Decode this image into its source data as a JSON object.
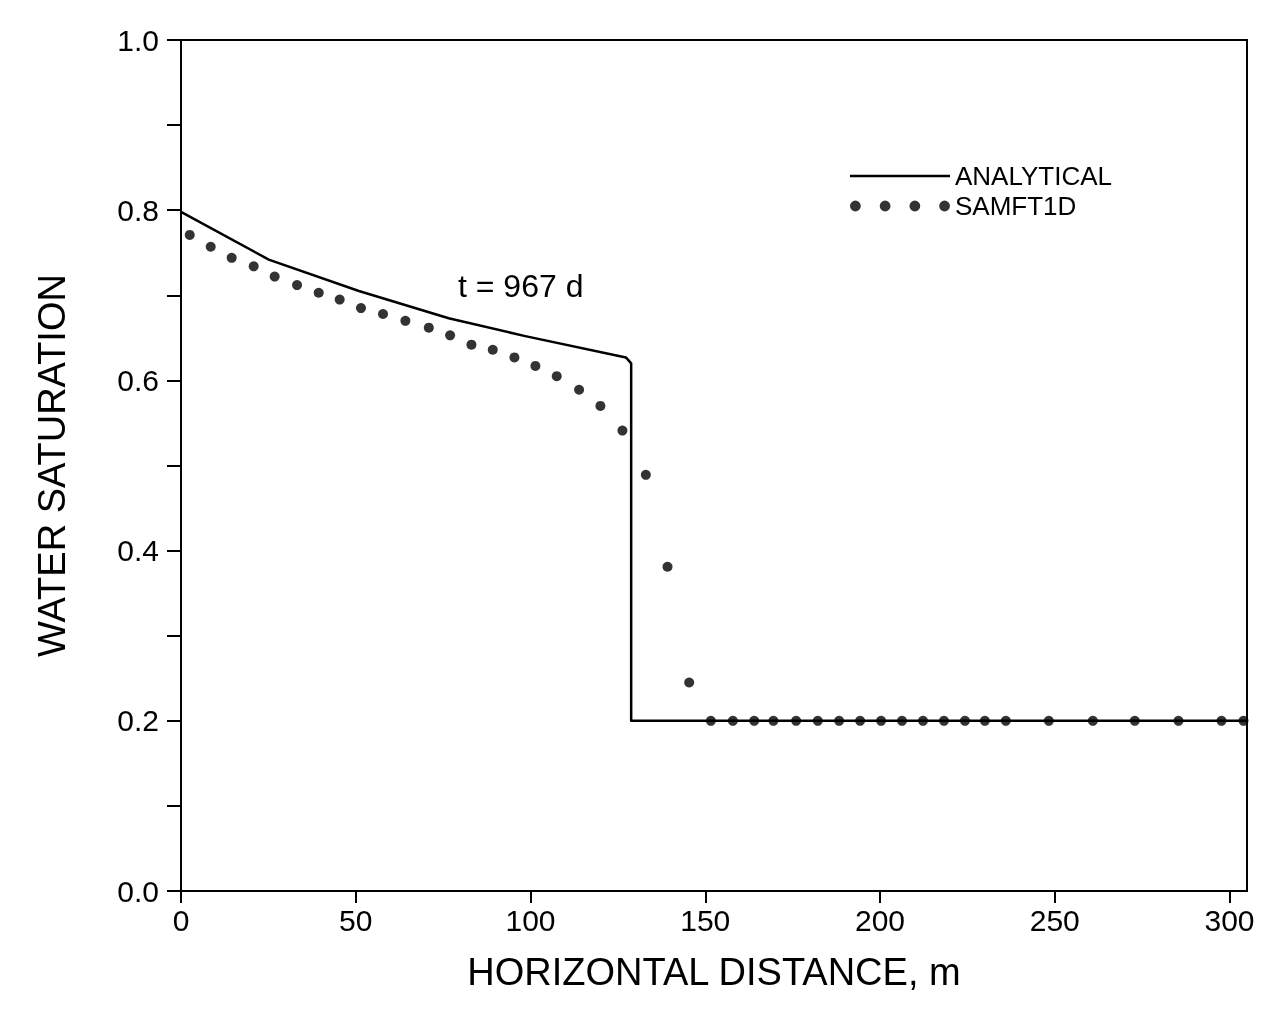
{
  "chart_data": {
    "type": "line",
    "xlabel": "HORIZONTAL DISTANCE, m",
    "ylabel": "WATER SATURATION",
    "annotations": [
      "t = 967 d"
    ],
    "xlim": [
      0,
      305
    ],
    "xticks": [
      0,
      50,
      100,
      150,
      200,
      250,
      300
    ],
    "ylim": [
      0,
      1
    ],
    "yticks": [
      {
        "value": 0,
        "label": "0.0"
      },
      {
        "value": 0.1,
        "label": null
      },
      {
        "value": 0.2,
        "label": "0.2"
      },
      {
        "value": 0.3,
        "label": null
      },
      {
        "value": 0.4,
        "label": "0.4"
      },
      {
        "value": 0.5,
        "label": null
      },
      {
        "value": 0.6,
        "label": "0.6"
      },
      {
        "value": 0.7,
        "label": null
      },
      {
        "value": 0.8,
        "label": "0.8"
      },
      {
        "value": 0.9,
        "label": null
      },
      {
        "value": 1,
        "label": "1.0"
      }
    ],
    "grid": false,
    "legend": "top right",
    "series": [
      {
        "name": "ANALYTICAL",
        "color": "#000000",
        "marker": "none",
        "line_style": "solid",
        "x": [
          0,
          25.1,
          50.9,
          76.6,
          98.5,
          127.3,
          128.8,
          128.8,
          305
        ],
        "values": [
          0.798,
          0.742,
          0.705,
          0.673,
          0.652,
          0.627,
          0.62,
          0.2,
          0.2
        ]
      },
      {
        "name": "SAMFT1D",
        "type": "scatter",
        "color": "#000000",
        "marker": "circle",
        "x": [
          2.5,
          8.5,
          14.5,
          20.8,
          26.8,
          33.2,
          39.4,
          45.4,
          51.5,
          57.8,
          64.2,
          70.9,
          77,
          83.1,
          89.2,
          95.4,
          101.4,
          107.5,
          113.9,
          120,
          126.3,
          133,
          139.2,
          145.4,
          151.6,
          157.9,
          164,
          169.5,
          176,
          182.2,
          188.3,
          194.3,
          200.3,
          206.3,
          212.3,
          218.3,
          224.3,
          230,
          236,
          248.3,
          260.9,
          272.9,
          285.4,
          297.7,
          304
        ],
        "values": [
          0.771,
          0.757,
          0.744,
          0.734,
          0.722,
          0.712,
          0.703,
          0.695,
          0.685,
          0.678,
          0.67,
          0.662,
          0.653,
          0.642,
          0.636,
          0.627,
          0.617,
          0.605,
          0.589,
          0.57,
          0.541,
          0.489,
          0.381,
          0.245,
          0.2,
          0.2,
          0.2,
          0.2,
          0.2,
          0.2,
          0.2,
          0.2,
          0.2,
          0.2,
          0.2,
          0.2,
          0.2,
          0.2,
          0.2,
          0.2,
          0.2,
          0.2,
          0.2,
          0.2,
          0.2
        ]
      }
    ]
  }
}
